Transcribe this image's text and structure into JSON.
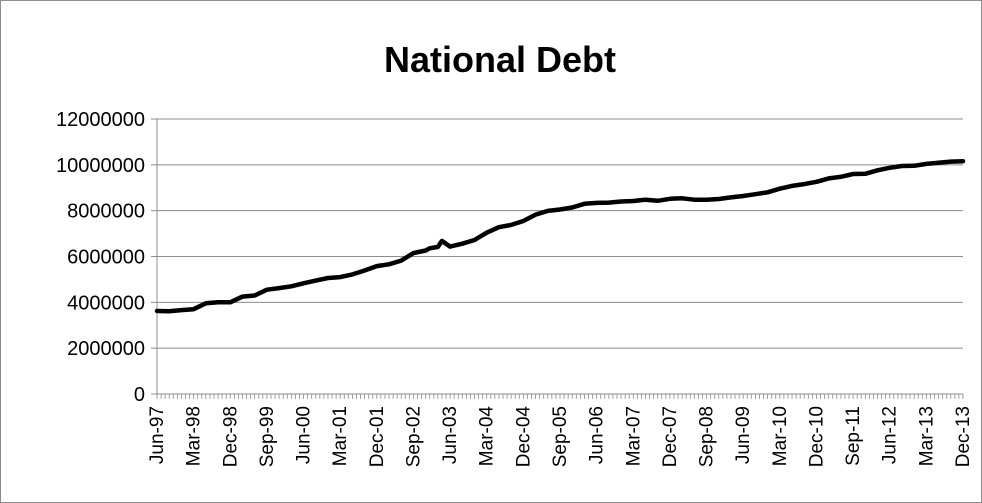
{
  "chart_data": {
    "type": "line",
    "title": "National Debt",
    "xlabel": "",
    "ylabel": "",
    "ylim": [
      0,
      12000000
    ],
    "yticks": [
      0,
      2000000,
      4000000,
      6000000,
      8000000,
      10000000,
      12000000
    ],
    "ytick_labels": [
      "0",
      "2000000",
      "4000000",
      "6000000",
      "8000000",
      "10000000",
      "12000000"
    ],
    "x_categories_labeled": [
      "Jun-97",
      "Mar-98",
      "Dec-98",
      "Sep-99",
      "Jun-00",
      "Mar-01",
      "Dec-01",
      "Sep-02",
      "Jun-03",
      "Mar-04",
      "Dec-04",
      "Sep-05",
      "Jun-06",
      "Mar-07",
      "Dec-07",
      "Sep-08",
      "Jun-09",
      "Mar-10",
      "Dec-10",
      "Sep-11",
      "Jun-12",
      "Mar-13",
      "Dec-13"
    ],
    "x_range": [
      "Jun-97",
      "Dec-13"
    ],
    "grid": "horizontal",
    "legend": "none",
    "series": [
      {
        "color": "#000000",
        "x": [
          "Jun-97",
          "Sep-97",
          "Dec-97",
          "Mar-98",
          "Jun-98",
          "Sep-98",
          "Dec-98",
          "Mar-99",
          "Jun-99",
          "Sep-99",
          "Dec-99",
          "Mar-00",
          "Jun-00",
          "Sep-00",
          "Dec-00",
          "Mar-01",
          "Jun-01",
          "Sep-01",
          "Dec-01",
          "Mar-02",
          "Jun-02",
          "Sep-02",
          "Dec-02",
          "Jan-03",
          "Mar-03",
          "Apr-03",
          "Jun-03",
          "Sep-03",
          "Dec-03",
          "Mar-04",
          "Jun-04",
          "Sep-04",
          "Dec-04",
          "Mar-05",
          "Jun-05",
          "Sep-05",
          "Dec-05",
          "Mar-06",
          "Jun-06",
          "Sep-06",
          "Dec-06",
          "Mar-07",
          "Jun-07",
          "Sep-07",
          "Dec-07",
          "Mar-08",
          "Jun-08",
          "Sep-08",
          "Dec-08",
          "Mar-09",
          "Jun-09",
          "Sep-09",
          "Dec-09",
          "Mar-10",
          "Jun-10",
          "Sep-10",
          "Dec-10",
          "Mar-11",
          "Jun-11",
          "Sep-11",
          "Dec-11",
          "Mar-12",
          "Jun-12",
          "Sep-12",
          "Dec-12",
          "Mar-13",
          "Jun-13",
          "Sep-13",
          "Dec-13"
        ],
        "values": [
          3620000,
          3610000,
          3660000,
          3700000,
          3960000,
          4000000,
          4000000,
          4250000,
          4300000,
          4550000,
          4620000,
          4700000,
          4830000,
          4950000,
          5060000,
          5100000,
          5220000,
          5390000,
          5580000,
          5660000,
          5820000,
          6150000,
          6260000,
          6360000,
          6420000,
          6680000,
          6430000,
          6560000,
          6720000,
          7040000,
          7280000,
          7380000,
          7550000,
          7830000,
          7990000,
          8050000,
          8140000,
          8300000,
          8340000,
          8350000,
          8400000,
          8420000,
          8480000,
          8430000,
          8520000,
          8540000,
          8480000,
          8480000,
          8510000,
          8580000,
          8640000,
          8720000,
          8800000,
          8960000,
          9080000,
          9160000,
          9260000,
          9410000,
          9480000,
          9600000,
          9610000,
          9760000,
          9870000,
          9950000,
          9960000,
          10040000,
          10090000,
          10140000,
          10160000
        ]
      }
    ]
  }
}
